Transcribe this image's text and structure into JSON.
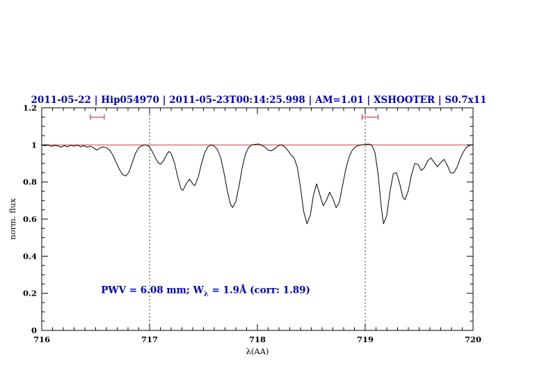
{
  "page": {
    "background": "#ffffff"
  },
  "chart_data": {
    "type": "line",
    "title": "2011-05-22 | Hip054970 | 2011-05-23T00:14:25.998 | AM=1.01 | XSHOOTER | S0.7x11",
    "title_color": "#0000cd",
    "xlabel": "λ(AA)",
    "ylabel": "norm. flux",
    "xlim": [
      716,
      720
    ],
    "ylim": [
      0,
      1.2
    ],
    "grid": false,
    "x_major_ticks": [
      716,
      717,
      718,
      719,
      720
    ],
    "x_tick_labels": [
      "716",
      "717",
      "718",
      "719",
      "720"
    ],
    "x_minor_step": 0.1,
    "y_major_ticks": [
      0,
      0.2,
      0.4,
      0.6,
      0.8,
      1,
      1.2
    ],
    "y_tick_labels": [
      "0",
      "0.2",
      "0.4",
      "0.6",
      "0.8",
      "1",
      "1.2"
    ],
    "y_minor_step": 0.05,
    "vlines": {
      "positions": [
        717,
        719
      ],
      "style": "dotted",
      "color": "#000000"
    },
    "continuum_line": {
      "y": 1.0,
      "color": "#cc2222"
    },
    "range_markers": {
      "y": 1.15,
      "color": "#cc2222",
      "ranges": [
        [
          716.45,
          716.58
        ],
        [
          718.97,
          719.12
        ]
      ]
    },
    "annotation": {
      "text_prefix": "PWV = 6.08 mm; W",
      "text_sub": "λ",
      "text_suffix": " = 1.9Å (corr: 1.89)",
      "x": 716.55,
      "y": 0.2,
      "color": "#0000cd"
    },
    "series": [
      {
        "name": "normalized telluric spectrum",
        "color": "#000000",
        "points": [
          [
            716.0,
            1.0
          ],
          [
            716.03,
            0.995
          ],
          [
            716.06,
            1.0
          ],
          [
            716.09,
            0.992
          ],
          [
            716.12,
            0.998
          ],
          [
            716.15,
            0.995
          ],
          [
            716.18,
            0.988
          ],
          [
            716.21,
            0.996
          ],
          [
            716.24,
            0.99
          ],
          [
            716.27,
            0.998
          ],
          [
            716.3,
            0.993
          ],
          [
            716.33,
            0.999
          ],
          [
            716.36,
            0.99
          ],
          [
            716.39,
            0.996
          ],
          [
            716.42,
            0.988
          ],
          [
            716.45,
            0.993
          ],
          [
            716.48,
            0.985
          ],
          [
            716.51,
            0.972
          ],
          [
            716.54,
            0.982
          ],
          [
            716.57,
            0.99
          ],
          [
            716.6,
            0.985
          ],
          [
            716.63,
            0.972
          ],
          [
            716.66,
            0.945
          ],
          [
            716.69,
            0.905
          ],
          [
            716.72,
            0.868
          ],
          [
            716.75,
            0.84
          ],
          [
            716.78,
            0.832
          ],
          [
            716.81,
            0.855
          ],
          [
            716.84,
            0.905
          ],
          [
            716.87,
            0.955
          ],
          [
            716.9,
            0.985
          ],
          [
            716.93,
            0.996
          ],
          [
            716.96,
            1.0
          ],
          [
            716.99,
            0.995
          ],
          [
            717.02,
            0.97
          ],
          [
            717.05,
            0.935
          ],
          [
            717.08,
            0.905
          ],
          [
            717.1,
            0.895
          ],
          [
            717.13,
            0.915
          ],
          [
            717.16,
            0.95
          ],
          [
            717.18,
            0.965
          ],
          [
            717.2,
            0.955
          ],
          [
            717.23,
            0.905
          ],
          [
            717.26,
            0.83
          ],
          [
            717.29,
            0.765
          ],
          [
            717.31,
            0.755
          ],
          [
            717.34,
            0.79
          ],
          [
            717.37,
            0.815
          ],
          [
            717.4,
            0.79
          ],
          [
            717.42,
            0.78
          ],
          [
            717.45,
            0.825
          ],
          [
            717.48,
            0.895
          ],
          [
            717.51,
            0.955
          ],
          [
            717.54,
            0.99
          ],
          [
            717.57,
            1.0
          ],
          [
            717.6,
            0.993
          ],
          [
            717.63,
            0.975
          ],
          [
            717.66,
            0.93
          ],
          [
            717.69,
            0.85
          ],
          [
            717.72,
            0.755
          ],
          [
            717.75,
            0.68
          ],
          [
            717.77,
            0.663
          ],
          [
            717.8,
            0.695
          ],
          [
            717.83,
            0.78
          ],
          [
            717.86,
            0.88
          ],
          [
            717.89,
            0.95
          ],
          [
            717.92,
            0.988
          ],
          [
            717.95,
            1.0
          ],
          [
            717.98,
            1.003
          ],
          [
            718.01,
            1.005
          ],
          [
            718.04,
            0.998
          ],
          [
            718.07,
            0.988
          ],
          [
            718.1,
            0.972
          ],
          [
            718.13,
            0.968
          ],
          [
            718.16,
            0.98
          ],
          [
            718.19,
            0.995
          ],
          [
            718.22,
            1.0
          ],
          [
            718.25,
            0.992
          ],
          [
            718.28,
            0.972
          ],
          [
            718.31,
            0.948
          ],
          [
            718.34,
            0.93
          ],
          [
            718.37,
            0.88
          ],
          [
            718.4,
            0.77
          ],
          [
            718.43,
            0.64
          ],
          [
            718.46,
            0.575
          ],
          [
            718.49,
            0.62
          ],
          [
            718.52,
            0.73
          ],
          [
            718.55,
            0.79
          ],
          [
            718.58,
            0.73
          ],
          [
            718.61,
            0.672
          ],
          [
            718.64,
            0.7
          ],
          [
            718.67,
            0.745
          ],
          [
            718.7,
            0.71
          ],
          [
            718.73,
            0.662
          ],
          [
            718.76,
            0.69
          ],
          [
            718.79,
            0.78
          ],
          [
            718.82,
            0.87
          ],
          [
            718.85,
            0.935
          ],
          [
            718.88,
            0.972
          ],
          [
            718.91,
            0.99
          ],
          [
            718.94,
            0.998
          ],
          [
            718.97,
            1.0
          ],
          [
            719.0,
            1.002
          ],
          [
            719.03,
            1.005
          ],
          [
            719.06,
            1.0
          ],
          [
            719.09,
            0.96
          ],
          [
            719.12,
            0.84
          ],
          [
            719.15,
            0.66
          ],
          [
            719.17,
            0.575
          ],
          [
            719.2,
            0.62
          ],
          [
            719.23,
            0.75
          ],
          [
            719.26,
            0.845
          ],
          [
            719.29,
            0.85
          ],
          [
            719.32,
            0.79
          ],
          [
            719.35,
            0.715
          ],
          [
            719.37,
            0.705
          ],
          [
            719.4,
            0.755
          ],
          [
            719.43,
            0.84
          ],
          [
            719.46,
            0.9
          ],
          [
            719.49,
            0.895
          ],
          [
            719.52,
            0.862
          ],
          [
            719.55,
            0.878
          ],
          [
            719.58,
            0.915
          ],
          [
            719.61,
            0.93
          ],
          [
            719.64,
            0.905
          ],
          [
            719.67,
            0.882
          ],
          [
            719.7,
            0.905
          ],
          [
            719.73,
            0.922
          ],
          [
            719.76,
            0.892
          ],
          [
            719.79,
            0.85
          ],
          [
            719.82,
            0.848
          ],
          [
            719.85,
            0.878
          ],
          [
            719.88,
            0.925
          ],
          [
            719.91,
            0.962
          ],
          [
            719.94,
            0.988
          ],
          [
            719.97,
            0.998
          ],
          [
            720.0,
            1.0
          ]
        ]
      }
    ]
  }
}
